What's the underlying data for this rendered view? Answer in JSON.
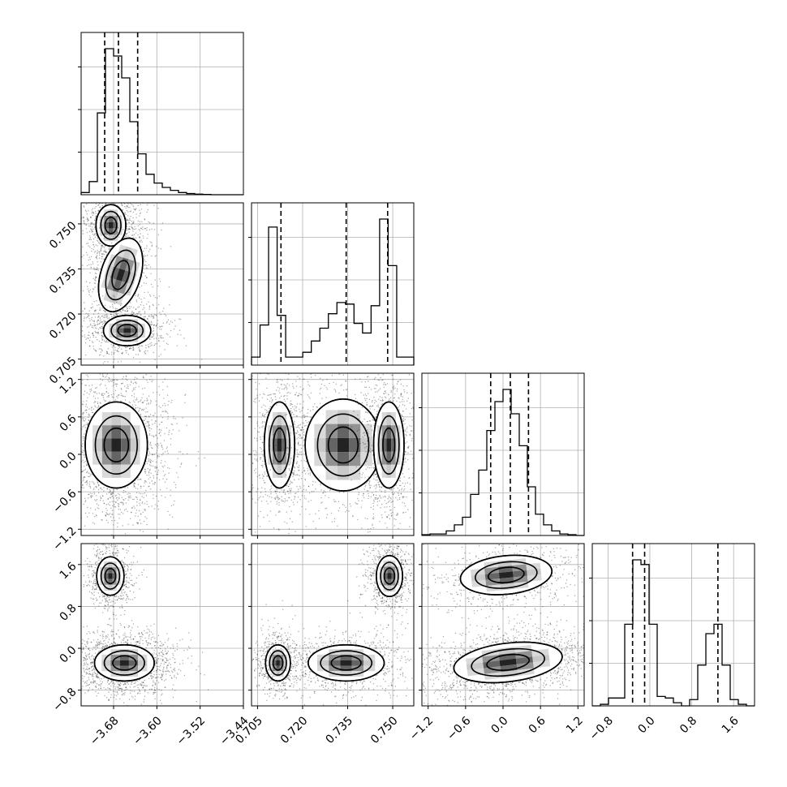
{
  "chart_data": {
    "type": "corner",
    "params": [
      {
        "range": [
          -3.74,
          -3.44
        ],
        "ticks": [
          -3.68,
          -3.6,
          -3.52,
          -3.44
        ],
        "tick_labels": [
          "−3.68",
          "−3.60",
          "−3.52",
          "−3.44"
        ]
      },
      {
        "range": [
          0.703,
          0.757
        ],
        "ticks": [
          0.705,
          0.72,
          0.735,
          0.75
        ],
        "tick_labels": [
          "0.705",
          "0.720",
          "0.735",
          "0.750"
        ]
      },
      {
        "range": [
          -1.3,
          1.3
        ],
        "ticks": [
          -1.2,
          -0.6,
          0.0,
          0.6,
          1.2
        ],
        "tick_labels": [
          "−1.2",
          "−0.6",
          "0.0",
          "0.6",
          "1.2"
        ]
      },
      {
        "range": [
          -1.1,
          2.0
        ],
        "ticks": [
          -0.8,
          0.0,
          0.8,
          1.6
        ],
        "tick_labels": [
          "−0.8",
          "0.0",
          "0.8",
          "1.6"
        ]
      }
    ],
    "histograms": [
      {
        "param": 0,
        "edges_from": -3.74,
        "edges_to": -3.44,
        "counts": [
          0.015,
          0.09,
          0.56,
          1.0,
          0.95,
          0.8,
          0.5,
          0.28,
          0.14,
          0.08,
          0.05,
          0.03,
          0.015,
          0.008,
          0.004,
          0.002,
          0,
          0,
          0,
          0
        ],
        "quantiles": [
          -3.6965,
          -3.671,
          -3.6355
        ]
      },
      {
        "param": 1,
        "edges_from": 0.703,
        "edges_to": 0.757,
        "counts": [
          0.05,
          0.25,
          0.86,
          0.31,
          0.05,
          0.05,
          0.08,
          0.15,
          0.23,
          0.32,
          0.39,
          0.38,
          0.26,
          0.2,
          0.37,
          0.91,
          0.62,
          0.05,
          0.05
        ],
        "quantiles": [
          0.7128,
          0.7345,
          0.7483
        ]
      },
      {
        "param": 2,
        "edges_from": -1.3,
        "edges_to": 1.3,
        "counts": [
          0.005,
          0.01,
          0.01,
          0.03,
          0.07,
          0.12,
          0.27,
          0.43,
          0.69,
          0.88,
          0.96,
          0.8,
          0.59,
          0.32,
          0.14,
          0.07,
          0.03,
          0.01,
          0.005,
          0
        ],
        "quantiles": [
          -0.198,
          0.117,
          0.408
        ]
      },
      {
        "param": 3,
        "edges_from": -1.1,
        "edges_to": 2.0,
        "counts": [
          0,
          0.01,
          0.05,
          0.05,
          0.52,
          0.93,
          0.9,
          0.52,
          0.06,
          0.05,
          0.02,
          0,
          0.04,
          0.26,
          0.46,
          0.52,
          0.26,
          0.04,
          0.01,
          0
        ],
        "quantiles": [
          -0.33,
          -0.1,
          1.3
        ]
      }
    ],
    "contour_panels": [
      {
        "x": 0,
        "y": 1,
        "modes": [
          {
            "cx": -3.685,
            "cy": 0.7495,
            "sx": 0.012,
            "sy": 0.003,
            "rot": 0,
            "n": 900
          },
          {
            "cx": -3.667,
            "cy": 0.733,
            "sx": 0.016,
            "sy": 0.0055,
            "rot": 0.3,
            "n": 700
          },
          {
            "cx": -3.655,
            "cy": 0.7145,
            "sx": 0.019,
            "sy": 0.0022,
            "rot": 0,
            "n": 800
          }
        ]
      },
      {
        "x": 0,
        "y": 2,
        "modes": [
          {
            "cx": -3.675,
            "cy": 0.15,
            "sx": 0.025,
            "sy": 0.3,
            "rot": 0,
            "n": 2200
          }
        ]
      },
      {
        "x": 1,
        "y": 2,
        "modes": [
          {
            "cx": 0.7123,
            "cy": 0.15,
            "sx": 0.0022,
            "sy": 0.3,
            "rot": 0,
            "n": 900
          },
          {
            "cx": 0.7335,
            "cy": 0.15,
            "sx": 0.0055,
            "sy": 0.32,
            "rot": 0,
            "n": 900
          },
          {
            "cx": 0.7487,
            "cy": 0.15,
            "sx": 0.0022,
            "sy": 0.3,
            "rot": 0,
            "n": 900
          }
        ]
      },
      {
        "x": 0,
        "y": 3,
        "modes": [
          {
            "cx": -3.686,
            "cy": 1.38,
            "sx": 0.011,
            "sy": 0.16,
            "rot": 0,
            "n": 700
          },
          {
            "cx": -3.66,
            "cy": -0.28,
            "sx": 0.024,
            "sy": 0.15,
            "rot": 0,
            "n": 1700
          }
        ]
      },
      {
        "x": 1,
        "y": 3,
        "modes": [
          {
            "cx": 0.7118,
            "cy": -0.28,
            "sx": 0.0018,
            "sy": 0.15,
            "rot": 0,
            "n": 700
          },
          {
            "cx": 0.7345,
            "cy": -0.28,
            "sx": 0.0055,
            "sy": 0.15,
            "rot": 0,
            "n": 900
          },
          {
            "cx": 0.7489,
            "cy": 1.38,
            "sx": 0.0019,
            "sy": 0.17,
            "rot": 0,
            "n": 800
          }
        ]
      },
      {
        "x": 2,
        "y": 3,
        "modes": [
          {
            "cx": 0.05,
            "cy": 1.4,
            "sx": 0.32,
            "sy": 0.16,
            "rot": -0.1,
            "n": 800
          },
          {
            "cx": 0.08,
            "cy": -0.27,
            "sx": 0.38,
            "sy": 0.16,
            "rot": -0.12,
            "n": 1700
          }
        ]
      }
    ]
  }
}
